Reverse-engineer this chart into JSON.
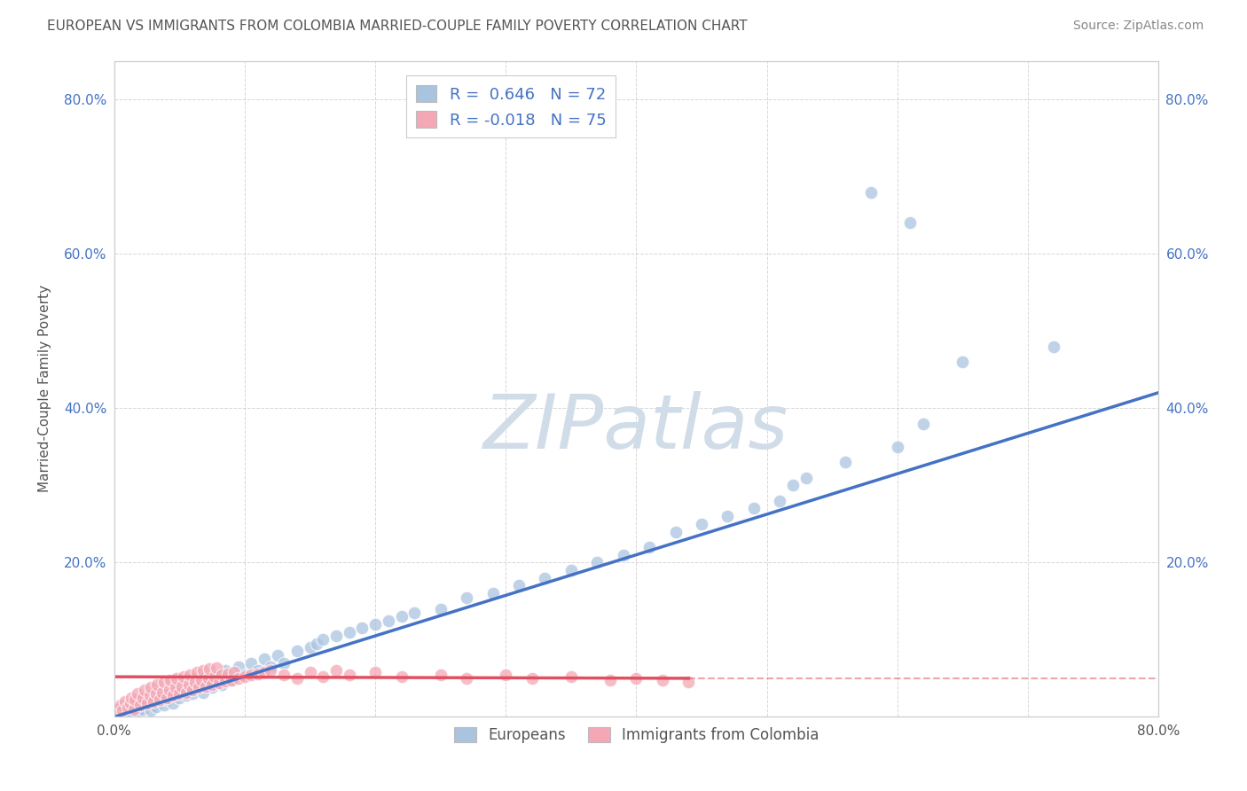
{
  "title": "EUROPEAN VS IMMIGRANTS FROM COLOMBIA MARRIED-COUPLE FAMILY POVERTY CORRELATION CHART",
  "source": "Source: ZipAtlas.com",
  "ylabel": "Married-Couple Family Poverty",
  "xlim": [
    0.0,
    0.8
  ],
  "ylim": [
    0.0,
    0.85
  ],
  "xtick_positions": [
    0.0,
    0.1,
    0.2,
    0.3,
    0.4,
    0.5,
    0.6,
    0.7,
    0.8
  ],
  "xticklabels": [
    "0.0%",
    "",
    "",
    "",
    "",
    "",
    "",
    "",
    "80.0%"
  ],
  "ytick_positions": [
    0.0,
    0.2,
    0.4,
    0.6,
    0.8
  ],
  "ytick_labels": [
    "",
    "20.0%",
    "40.0%",
    "60.0%",
    "80.0%"
  ],
  "legend_label1": "R =  0.646   N = 72",
  "legend_label2": "R = -0.018   N = 75",
  "legend_series1": "Europeans",
  "legend_series2": "Immigrants from Colombia",
  "R1": 0.646,
  "N1": 72,
  "R2": -0.018,
  "N2": 75,
  "blue_color": "#aac4e0",
  "pink_color": "#f4a7b5",
  "blue_line_color": "#4472c4",
  "red_line_color": "#e05060",
  "title_color": "#555555",
  "watermark_color": "#d0dce8",
  "background_color": "#ffffff",
  "grid_color": "#cccccc",
  "blue_scatter": [
    [
      0.005,
      0.01
    ],
    [
      0.007,
      0.005
    ],
    [
      0.01,
      0.008
    ],
    [
      0.012,
      0.003
    ],
    [
      0.015,
      0.012
    ],
    [
      0.018,
      0.006
    ],
    [
      0.02,
      0.015
    ],
    [
      0.022,
      0.01
    ],
    [
      0.025,
      0.018
    ],
    [
      0.028,
      0.008
    ],
    [
      0.03,
      0.02
    ],
    [
      0.032,
      0.013
    ],
    [
      0.035,
      0.025
    ],
    [
      0.038,
      0.015
    ],
    [
      0.04,
      0.022
    ],
    [
      0.042,
      0.03
    ],
    [
      0.045,
      0.018
    ],
    [
      0.048,
      0.035
    ],
    [
      0.05,
      0.025
    ],
    [
      0.055,
      0.028
    ],
    [
      0.058,
      0.04
    ],
    [
      0.06,
      0.03
    ],
    [
      0.065,
      0.045
    ],
    [
      0.068,
      0.032
    ],
    [
      0.07,
      0.05
    ],
    [
      0.075,
      0.038
    ],
    [
      0.08,
      0.055
    ],
    [
      0.082,
      0.042
    ],
    [
      0.085,
      0.06
    ],
    [
      0.09,
      0.048
    ],
    [
      0.095,
      0.065
    ],
    [
      0.1,
      0.055
    ],
    [
      0.105,
      0.07
    ],
    [
      0.11,
      0.06
    ],
    [
      0.115,
      0.075
    ],
    [
      0.12,
      0.065
    ],
    [
      0.125,
      0.08
    ],
    [
      0.13,
      0.07
    ],
    [
      0.14,
      0.085
    ],
    [
      0.15,
      0.09
    ],
    [
      0.155,
      0.095
    ],
    [
      0.16,
      0.1
    ],
    [
      0.17,
      0.105
    ],
    [
      0.18,
      0.11
    ],
    [
      0.19,
      0.115
    ],
    [
      0.2,
      0.12
    ],
    [
      0.21,
      0.125
    ],
    [
      0.22,
      0.13
    ],
    [
      0.23,
      0.135
    ],
    [
      0.25,
      0.14
    ],
    [
      0.27,
      0.155
    ],
    [
      0.29,
      0.16
    ],
    [
      0.31,
      0.17
    ],
    [
      0.33,
      0.18
    ],
    [
      0.35,
      0.19
    ],
    [
      0.37,
      0.2
    ],
    [
      0.39,
      0.21
    ],
    [
      0.41,
      0.22
    ],
    [
      0.43,
      0.24
    ],
    [
      0.45,
      0.25
    ],
    [
      0.47,
      0.26
    ],
    [
      0.49,
      0.27
    ],
    [
      0.51,
      0.28
    ],
    [
      0.52,
      0.3
    ],
    [
      0.53,
      0.31
    ],
    [
      0.56,
      0.33
    ],
    [
      0.6,
      0.35
    ],
    [
      0.62,
      0.38
    ],
    [
      0.58,
      0.68
    ],
    [
      0.61,
      0.64
    ],
    [
      0.72,
      0.48
    ],
    [
      0.65,
      0.46
    ]
  ],
  "pink_scatter": [
    [
      0.003,
      0.01
    ],
    [
      0.005,
      0.015
    ],
    [
      0.006,
      0.008
    ],
    [
      0.008,
      0.02
    ],
    [
      0.01,
      0.012
    ],
    [
      0.012,
      0.018
    ],
    [
      0.013,
      0.025
    ],
    [
      0.015,
      0.01
    ],
    [
      0.016,
      0.022
    ],
    [
      0.018,
      0.03
    ],
    [
      0.02,
      0.015
    ],
    [
      0.022,
      0.025
    ],
    [
      0.023,
      0.035
    ],
    [
      0.025,
      0.018
    ],
    [
      0.027,
      0.028
    ],
    [
      0.028,
      0.038
    ],
    [
      0.03,
      0.02
    ],
    [
      0.032,
      0.03
    ],
    [
      0.033,
      0.042
    ],
    [
      0.035,
      0.022
    ],
    [
      0.037,
      0.032
    ],
    [
      0.038,
      0.045
    ],
    [
      0.04,
      0.025
    ],
    [
      0.042,
      0.035
    ],
    [
      0.043,
      0.048
    ],
    [
      0.045,
      0.028
    ],
    [
      0.047,
      0.038
    ],
    [
      0.048,
      0.05
    ],
    [
      0.05,
      0.03
    ],
    [
      0.052,
      0.04
    ],
    [
      0.053,
      0.052
    ],
    [
      0.055,
      0.032
    ],
    [
      0.057,
      0.042
    ],
    [
      0.058,
      0.055
    ],
    [
      0.06,
      0.035
    ],
    [
      0.062,
      0.045
    ],
    [
      0.063,
      0.058
    ],
    [
      0.065,
      0.038
    ],
    [
      0.067,
      0.048
    ],
    [
      0.068,
      0.06
    ],
    [
      0.07,
      0.04
    ],
    [
      0.072,
      0.05
    ],
    [
      0.073,
      0.062
    ],
    [
      0.075,
      0.042
    ],
    [
      0.077,
      0.052
    ],
    [
      0.078,
      0.064
    ],
    [
      0.08,
      0.044
    ],
    [
      0.082,
      0.054
    ],
    [
      0.085,
      0.046
    ],
    [
      0.087,
      0.056
    ],
    [
      0.09,
      0.048
    ],
    [
      0.092,
      0.058
    ],
    [
      0.095,
      0.05
    ],
    [
      0.1,
      0.052
    ],
    [
      0.105,
      0.054
    ],
    [
      0.11,
      0.056
    ],
    [
      0.115,
      0.058
    ],
    [
      0.12,
      0.06
    ],
    [
      0.13,
      0.055
    ],
    [
      0.14,
      0.05
    ],
    [
      0.15,
      0.058
    ],
    [
      0.16,
      0.052
    ],
    [
      0.17,
      0.06
    ],
    [
      0.18,
      0.055
    ],
    [
      0.2,
      0.058
    ],
    [
      0.22,
      0.052
    ],
    [
      0.25,
      0.055
    ],
    [
      0.27,
      0.05
    ],
    [
      0.3,
      0.055
    ],
    [
      0.32,
      0.05
    ],
    [
      0.35,
      0.052
    ],
    [
      0.38,
      0.048
    ],
    [
      0.4,
      0.05
    ],
    [
      0.42,
      0.048
    ],
    [
      0.44,
      0.045
    ]
  ],
  "blue_line_x": [
    0.0,
    0.8
  ],
  "blue_line_y": [
    0.0,
    0.42
  ],
  "red_line_x": [
    0.0,
    0.44
  ],
  "red_line_y": [
    0.052,
    0.05
  ]
}
